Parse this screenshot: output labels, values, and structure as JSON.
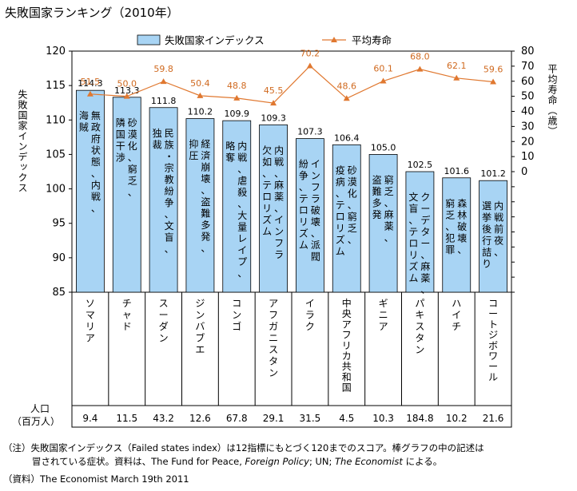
{
  "title": "失敗国家ランキング（2010年）",
  "legend": {
    "bar_label": "失敗国家インデックス",
    "line_label": "平均寿命"
  },
  "left_axis_label": "失敗国家インデックス",
  "right_axis_label": "平均寿命（歳）",
  "population_label_line1": "人口",
  "population_label_line2": "（百万人）",
  "notes": {
    "line1_a": "（注）失敗国家インデックス（Failed states index）は12指標にもとづく120までのスコア。棒グラフの中の記述は",
    "line2_a": "冒されている症状。資料は、The Fund for Peace, ",
    "line2_italic1": "Foreign Policy",
    "line2_b": "; UN; ",
    "line2_italic2": "The Economist",
    "line2_c": " による。",
    "line3": "（資料）The Economist March 19th 2011"
  },
  "colors": {
    "bar_fill": "#a8d4f4",
    "bar_stroke": "#000000",
    "line": "#e07830",
    "marker": "#e07830",
    "life_label": "#d06a20"
  },
  "chart_data": {
    "type": "bar",
    "left_axis": {
      "min": 85,
      "max": 120,
      "ticks": [
        85,
        90,
        95,
        100,
        105,
        110,
        115,
        120
      ]
    },
    "right_axis": {
      "min": -80,
      "max": 80,
      "ticks": [
        0,
        10,
        20,
        30,
        40,
        50,
        60,
        70,
        80
      ]
    },
    "categories": [
      "ソマリア",
      "チャド",
      "スーダン",
      "ジンバブエ",
      "コンゴ",
      "アフガニスタン",
      "イラク",
      "中央アフリカ共和国",
      "ギニア",
      "パキスタン",
      "ハイチ",
      "コートジボワール"
    ],
    "series": [
      {
        "name": "失敗国家インデックス",
        "type": "bar",
        "values": [
          114.3,
          113.3,
          111.8,
          110.2,
          109.9,
          109.3,
          107.3,
          106.4,
          105.0,
          102.5,
          101.6,
          101.2
        ],
        "labels": [
          "114.3",
          "113.3",
          "111.8",
          "110.2",
          "109.9",
          "109.3",
          "107.3",
          "106.4",
          "105.0",
          "102.5",
          "101.6",
          "101.2"
        ]
      },
      {
        "name": "平均寿命",
        "type": "line",
        "values": [
          51.5,
          50.0,
          59.8,
          50.4,
          48.8,
          45.5,
          70.2,
          48.6,
          60.1,
          68.0,
          62.1,
          59.6
        ],
        "labels": [
          "51.5",
          "50.0",
          "59.8",
          "50.4",
          "48.8",
          "45.5",
          "70.2",
          "48.6",
          "60.1",
          "68.0",
          "62.1",
          "59.6"
        ]
      }
    ],
    "bar_annotations": [
      [
        "無政府状態、内戦、",
        "海賊"
      ],
      [
        "砂漠化、窮乏、",
        "隣国干渉"
      ],
      [
        "民族・宗教紛争、文盲、",
        "独裁"
      ],
      [
        "経済崩壊、盗難多発、",
        "抑圧"
      ],
      [
        "内戦、虐殺、大量レイプ、",
        "略奪"
      ],
      [
        "内戦、麻薬、インフラ",
        "欠如、テロリズム"
      ],
      [
        "インフラ破壊、派閥",
        "紛争、テロリズム"
      ],
      [
        "砂漠化、窮乏、",
        "疫病、テロリズム"
      ],
      [
        "窮乏、麻薬、",
        "盗難多発"
      ],
      [
        "クーデター、麻薬、",
        "文盲、テロリズム"
      ],
      [
        "森林破壊、",
        "窮乏、犯罪"
      ],
      [
        "内戦前夜、",
        "選挙後行詰り"
      ]
    ],
    "population": [
      "9.4",
      "11.5",
      "43.2",
      "12.6",
      "67.8",
      "29.1",
      "31.5",
      "4.5",
      "10.3",
      "184.8",
      "10.2",
      "21.6"
    ]
  }
}
